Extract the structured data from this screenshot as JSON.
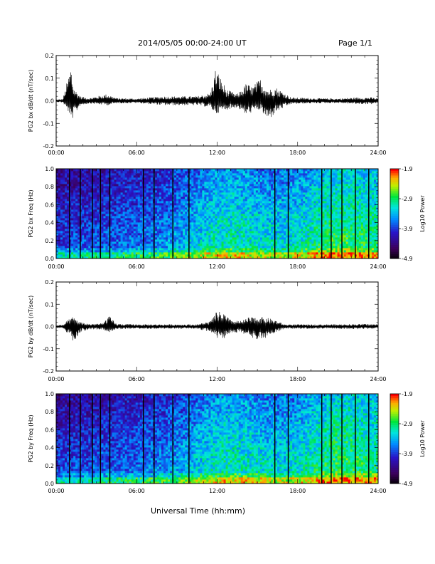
{
  "header": {
    "title": "2014/05/05  00:00-24:00 UT",
    "page": "Page 1/1"
  },
  "footer": {
    "xlabel": "Universal Time (hh:mm)"
  },
  "chart_data": [
    {
      "type": "line",
      "ylabel": "PG2 bx dB/dt (nT/sec)",
      "xlim": [
        0,
        24
      ],
      "ylim": [
        -0.2,
        0.2
      ],
      "y_ticks": [
        "-0.2",
        "-0.1",
        "0.0",
        "0.1",
        "0.2"
      ],
      "x_ticks": [
        "00:00",
        "06:00",
        "12:00",
        "18:00",
        "24:00"
      ],
      "envelope": {
        "x_hours": [
          0,
          0.5,
          1.0,
          1.1,
          1.3,
          1.8,
          2.5,
          3.8,
          4.5,
          6,
          8,
          9.5,
          10.5,
          11.5,
          11.9,
          12.2,
          12.7,
          13.5,
          14.2,
          14.6,
          15.2,
          15.8,
          16.4,
          17.5,
          19,
          21,
          22.5,
          23.5,
          24
        ],
        "upper": [
          0.005,
          0.008,
          0.13,
          0.16,
          0.06,
          0.02,
          0.012,
          0.03,
          0.012,
          0.01,
          0.02,
          0.02,
          0.02,
          0.035,
          0.15,
          0.11,
          0.05,
          0.03,
          0.08,
          0.06,
          0.1,
          0.05,
          0.06,
          0.015,
          0.012,
          0.01,
          0.015,
          0.015,
          0.01
        ],
        "lower": [
          -0.005,
          -0.008,
          -0.06,
          -0.1,
          -0.07,
          -0.02,
          -0.012,
          -0.02,
          -0.012,
          -0.01,
          -0.02,
          -0.02,
          -0.02,
          -0.03,
          -0.06,
          -0.05,
          -0.04,
          -0.03,
          -0.065,
          -0.05,
          -0.04,
          -0.09,
          -0.05,
          -0.015,
          -0.012,
          -0.01,
          -0.015,
          -0.015,
          -0.01
        ]
      }
    },
    {
      "type": "heatmap",
      "ylabel": "PG2 bx Freq (Hz)",
      "xlim": [
        0,
        24
      ],
      "ylim": [
        0,
        1.0
      ],
      "y_ticks": [
        "0.0",
        "0.2",
        "0.4",
        "0.6",
        "0.8",
        "1.0"
      ],
      "x_ticks": [
        "00:00",
        "06:00",
        "12:00",
        "18:00",
        "24:00"
      ],
      "colorbar": {
        "label": "Log10 Power",
        "ticks": [
          "-1.9",
          "-2.9",
          "-3.9",
          "-4.9"
        ],
        "range": [
          -4.9,
          -1.9
        ]
      },
      "gap_lines_hours": [
        1.0,
        1.8,
        2.7,
        3.3,
        4.0,
        6.5,
        7.3,
        8.7,
        9.9,
        16.3,
        17.3,
        19.8,
        20.5,
        21.3,
        22.3,
        23.3
      ]
    },
    {
      "type": "line",
      "ylabel": "PG2 by dB/dt (nT/sec)",
      "xlim": [
        0,
        24
      ],
      "ylim": [
        -0.2,
        0.2
      ],
      "y_ticks": [
        "-0.2",
        "-0.1",
        "0.0",
        "0.1",
        "0.2"
      ],
      "x_ticks": [
        "00:00",
        "06:00",
        "12:00",
        "18:00",
        "24:00"
      ],
      "envelope": {
        "x_hours": [
          0,
          0.5,
          1.0,
          1.3,
          1.8,
          2.5,
          3.5,
          3.9,
          4.5,
          6,
          8,
          9.5,
          10.5,
          11.5,
          12.0,
          12.5,
          13.0,
          13.8,
          14.3,
          15.0,
          15.7,
          16.3,
          17.0,
          19,
          21,
          23,
          24
        ],
        "upper": [
          0.006,
          0.008,
          0.035,
          0.045,
          0.02,
          0.012,
          0.015,
          0.05,
          0.012,
          0.01,
          0.01,
          0.01,
          0.01,
          0.025,
          0.07,
          0.06,
          0.03,
          0.025,
          0.04,
          0.045,
          0.04,
          0.03,
          0.01,
          0.01,
          0.01,
          0.012,
          0.01
        ],
        "lower": [
          -0.006,
          -0.008,
          -0.04,
          -0.07,
          -0.025,
          -0.012,
          -0.015,
          -0.03,
          -0.012,
          -0.01,
          -0.01,
          -0.01,
          -0.01,
          -0.025,
          -0.06,
          -0.06,
          -0.03,
          -0.025,
          -0.05,
          -0.06,
          -0.05,
          -0.03,
          -0.01,
          -0.01,
          -0.01,
          -0.012,
          -0.01
        ]
      }
    },
    {
      "type": "heatmap",
      "ylabel": "PG2 by Freq (Hz)",
      "xlim": [
        0,
        24
      ],
      "ylim": [
        0,
        1.0
      ],
      "y_ticks": [
        "0.0",
        "0.2",
        "0.4",
        "0.6",
        "0.8",
        "1.0"
      ],
      "x_ticks": [
        "00:00",
        "06:00",
        "12:00",
        "18:00",
        "24:00"
      ],
      "colorbar": {
        "label": "Log10 Power",
        "ticks": [
          "-1.9",
          "-2.9",
          "-3.9",
          "-4.9"
        ],
        "range": [
          -4.9,
          -1.9
        ]
      },
      "gap_lines_hours": [
        1.0,
        1.8,
        2.7,
        3.3,
        4.0,
        6.5,
        7.3,
        8.7,
        9.9,
        16.3,
        17.3,
        19.8,
        20.5,
        21.3,
        22.3,
        23.3
      ]
    }
  ]
}
